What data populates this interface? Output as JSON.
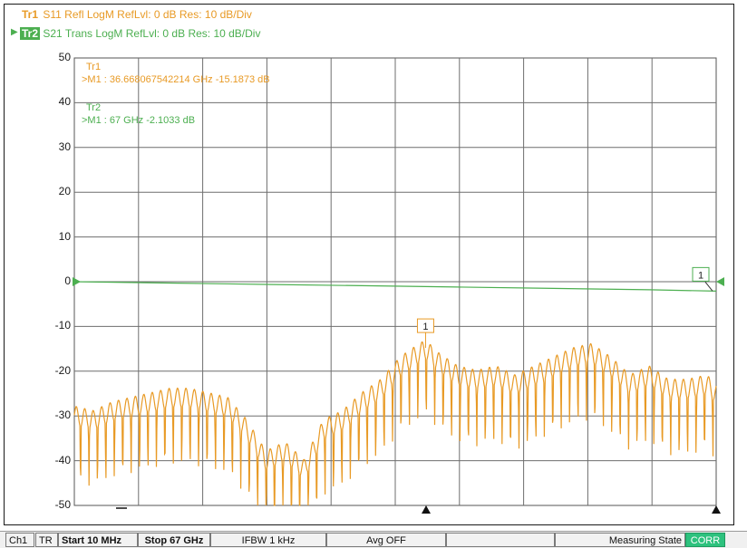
{
  "traces": {
    "tr1": {
      "tag": "Tr1",
      "text": "S11 Refl LogM RefLvl: 0  dB Res: 10  dB/Div",
      "color": "#e89a25"
    },
    "tr2": {
      "tag": "Tr2",
      "text": "S21 Trans LogM RefLvl: 0  dB Res: 10  dB/Div",
      "color": "#4caf50"
    }
  },
  "markers": {
    "tr1_label": "Tr1",
    "tr1_m1": ">M1 :  36.668067542214 GHz  -15.1873  dB",
    "tr2_label": "Tr2",
    "tr2_m1": ">M1 :  67 GHz  -2.1033  dB"
  },
  "marker_flags": {
    "tr1": "1",
    "tr2": "1"
  },
  "y_axis_labels": [
    "50",
    "40",
    "30",
    "20",
    "10",
    "0",
    "-10",
    "-20",
    "-30",
    "-40",
    "-50"
  ],
  "status_bar": {
    "ch": "Ch1",
    "tr": "TR",
    "start": "Start 10 MHz",
    "stop": "Stop 67 GHz",
    "ifbw": "IFBW 1 kHz",
    "avg": "Avg OFF",
    "state": "Measuring State",
    "corr": "CORR"
  },
  "chart_data": {
    "type": "line",
    "x_range_ghz": [
      0.01,
      67
    ],
    "ylim": [
      -50,
      50
    ],
    "y_division": 10,
    "grid": true,
    "series": [
      {
        "name": "S11 Refl",
        "color": "#e89a25",
        "x_ghz": [
          0.01,
          2,
          4,
          6,
          8,
          10,
          12,
          14,
          16,
          18,
          20,
          22,
          24,
          26,
          28,
          30,
          32,
          34,
          36,
          36.67,
          38,
          40,
          42,
          44,
          46,
          48,
          50,
          52,
          54,
          56,
          58,
          60,
          62,
          64,
          66,
          67
        ],
        "y_db": [
          -30,
          -31,
          -29,
          -28,
          -27,
          -26,
          -26,
          -27,
          -28,
          -33,
          -40,
          -38,
          -42,
          -33,
          -31,
          -27,
          -24,
          -19,
          -16,
          -15.2,
          -18,
          -21,
          -22,
          -21,
          -23,
          -21,
          -19,
          -17,
          -16,
          -19,
          -23,
          -21,
          -24,
          -24,
          -23,
          -25
        ]
      },
      {
        "name": "S21 Trans",
        "color": "#4caf50",
        "x_ghz": [
          0.01,
          10,
          20,
          30,
          40,
          50,
          60,
          67
        ],
        "y_db": [
          0,
          -0.3,
          -0.6,
          -0.9,
          -1.2,
          -1.5,
          -1.8,
          -2.1
        ]
      }
    ]
  }
}
